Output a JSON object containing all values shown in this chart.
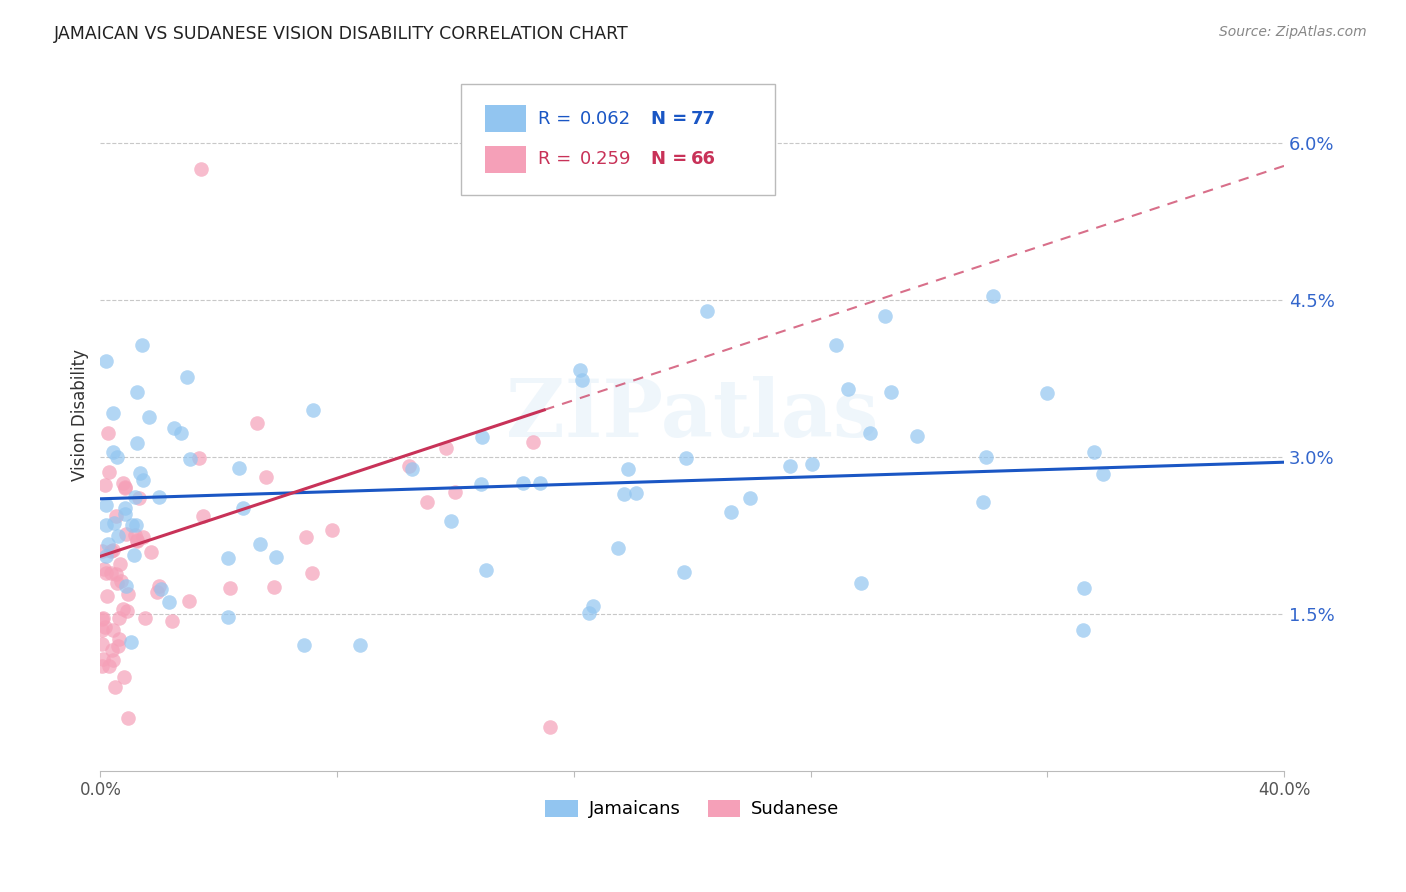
{
  "title": "JAMAICAN VS SUDANESE VISION DISABILITY CORRELATION CHART",
  "source": "Source: ZipAtlas.com",
  "ylabel": "Vision Disability",
  "xlim": [
    0.0,
    40.0
  ],
  "ylim": [
    0.0,
    6.8
  ],
  "yticks": [
    1.5,
    3.0,
    4.5,
    6.0
  ],
  "ytick_labels": [
    "1.5%",
    "3.0%",
    "4.5%",
    "6.0%"
  ],
  "blue_color": "#92C5F0",
  "pink_color": "#F5A0B8",
  "blue_line_color": "#1A56C4",
  "pink_line_color": "#C83258",
  "watermark": "ZIPatlas",
  "legend_blue_R": "0.062",
  "legend_blue_N": "77",
  "legend_pink_R": "0.259",
  "legend_pink_N": "66"
}
